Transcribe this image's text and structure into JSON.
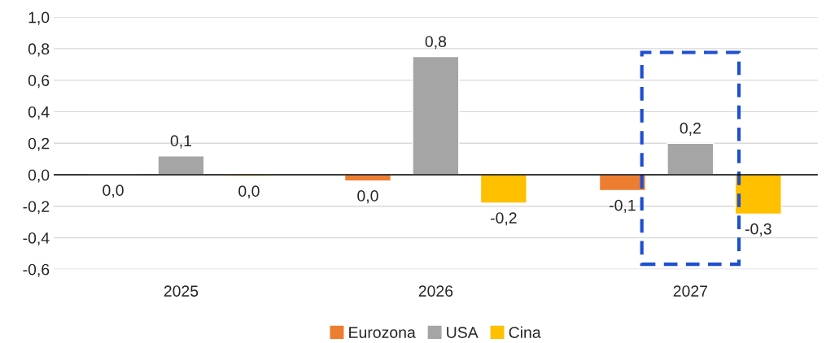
{
  "chart_data": {
    "type": "bar",
    "categories": [
      "2025",
      "2026",
      "2027"
    ],
    "series": [
      {
        "name": "Eurozona",
        "color": "#ed7d31",
        "values": [
          -0.005,
          -0.04,
          -0.1
        ],
        "value_labels": [
          "0,0",
          "0,0",
          "-0,1"
        ]
      },
      {
        "name": "USA",
        "color": "#a5a5a5",
        "values": [
          0.12,
          0.75,
          0.2
        ],
        "value_labels": [
          "0,1",
          "0,8",
          "0,2"
        ]
      },
      {
        "name": "Cina",
        "color": "#ffc000",
        "values": [
          -0.01,
          -0.18,
          -0.25
        ],
        "value_labels": [
          "0,0",
          "-0,2",
          "-0,3"
        ]
      }
    ],
    "ylim": [
      -0.6,
      1.0
    ],
    "yticks": [
      {
        "value": -0.6,
        "label": "-0,6"
      },
      {
        "value": -0.4,
        "label": "-0,4"
      },
      {
        "value": -0.2,
        "label": "-0,2"
      },
      {
        "value": 0.0,
        "label": "0,0"
      },
      {
        "value": 0.2,
        "label": "0,2"
      },
      {
        "value": 0.4,
        "label": "0,4"
      },
      {
        "value": 0.6,
        "label": "0,6"
      },
      {
        "value": 0.8,
        "label": "0,8"
      },
      {
        "value": 1.0,
        "label": "1,0"
      }
    ],
    "grid": "y",
    "legend": "bottom"
  }
}
